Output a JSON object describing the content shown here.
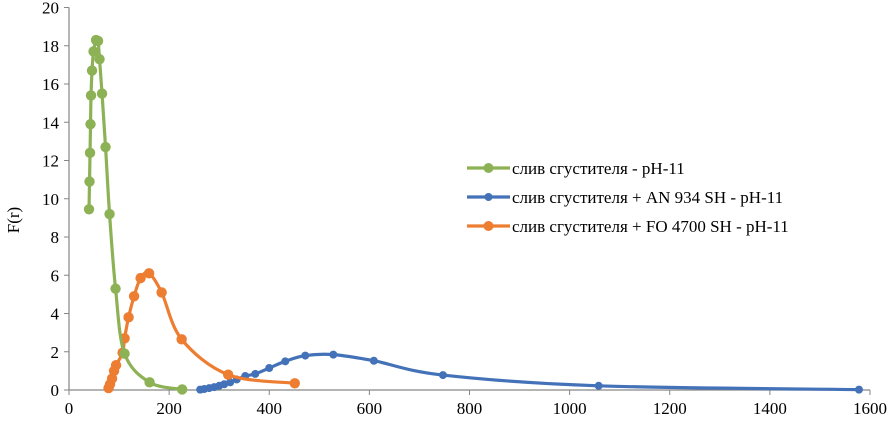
{
  "chart_data": {
    "type": "scatter",
    "mode": "smooth-lines-with-markers",
    "title": "",
    "xlabel": "",
    "ylabel": "F(r)",
    "xlim": [
      0,
      1600
    ],
    "ylim": [
      0,
      20
    ],
    "x_ticks": [
      0,
      200,
      400,
      600,
      800,
      1000,
      1200,
      1400,
      1600
    ],
    "y_ticks": [
      0,
      2,
      4,
      6,
      8,
      10,
      12,
      14,
      16,
      18,
      20
    ],
    "grid": false,
    "legend_position": "right",
    "series": [
      {
        "name": "слив сгустителя - pH-11",
        "color": "#8DB255",
        "points": [
          [
            40,
            9.45
          ],
          [
            41,
            10.9
          ],
          [
            42,
            12.4
          ],
          [
            43,
            13.9
          ],
          [
            44,
            15.4
          ],
          [
            46,
            16.7
          ],
          [
            49,
            17.7
          ],
          [
            54,
            18.3
          ],
          [
            58,
            18.25
          ],
          [
            61,
            17.3
          ],
          [
            66,
            15.5
          ],
          [
            73,
            12.7
          ],
          [
            81,
            9.2
          ],
          [
            93,
            5.3
          ],
          [
            111,
            1.9
          ],
          [
            161,
            0.4
          ],
          [
            226,
            0.03
          ]
        ]
      },
      {
        "name": "слив сгустителя + AN 934 SH - pH-11",
        "color": "#4472B8",
        "points": [
          [
            262,
            0.02
          ],
          [
            270,
            0.05
          ],
          [
            280,
            0.1
          ],
          [
            290,
            0.15
          ],
          [
            300,
            0.22
          ],
          [
            310,
            0.3
          ],
          [
            322,
            0.4
          ],
          [
            335,
            0.55
          ],
          [
            352,
            0.73
          ],
          [
            372,
            0.84
          ],
          [
            400,
            1.15
          ],
          [
            432,
            1.5
          ],
          [
            472,
            1.8
          ],
          [
            528,
            1.85
          ],
          [
            609,
            1.53
          ],
          [
            747,
            0.78
          ],
          [
            1058,
            0.22
          ],
          [
            1578,
            0.02
          ]
        ]
      },
      {
        "name": "слив сгустителя + FO 4700 SH - pH-11",
        "color": "#ED7D31",
        "points": [
          [
            79,
            0.1
          ],
          [
            82,
            0.3
          ],
          [
            86,
            0.6
          ],
          [
            90,
            1.0
          ],
          [
            94,
            1.3
          ],
          [
            107,
            1.95
          ],
          [
            111,
            2.7
          ],
          [
            119,
            3.8
          ],
          [
            130,
            4.9
          ],
          [
            143,
            5.85
          ],
          [
            160,
            6.1
          ],
          [
            185,
            5.1
          ],
          [
            225,
            2.65
          ],
          [
            318,
            0.8
          ],
          [
            451,
            0.35
          ]
        ]
      }
    ]
  }
}
